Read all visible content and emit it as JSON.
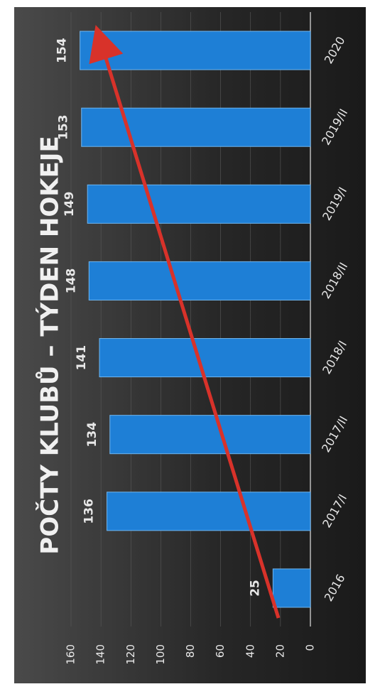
{
  "chart_data": {
    "type": "bar",
    "title": "POČTY KLUBŮ – TÝDEN HOKEJE",
    "categories": [
      "2016",
      "2017/I",
      "2017/II",
      "2018/I",
      "2018/II",
      "2019/I",
      "2019/II",
      "2020"
    ],
    "values": [
      25,
      136,
      134,
      141,
      148,
      149,
      153,
      154
    ],
    "color": "#1e7fd6",
    "ylim": [
      0,
      160
    ],
    "yticks": [
      0,
      20,
      40,
      60,
      80,
      100,
      120,
      140,
      160
    ],
    "grid": true
  }
}
